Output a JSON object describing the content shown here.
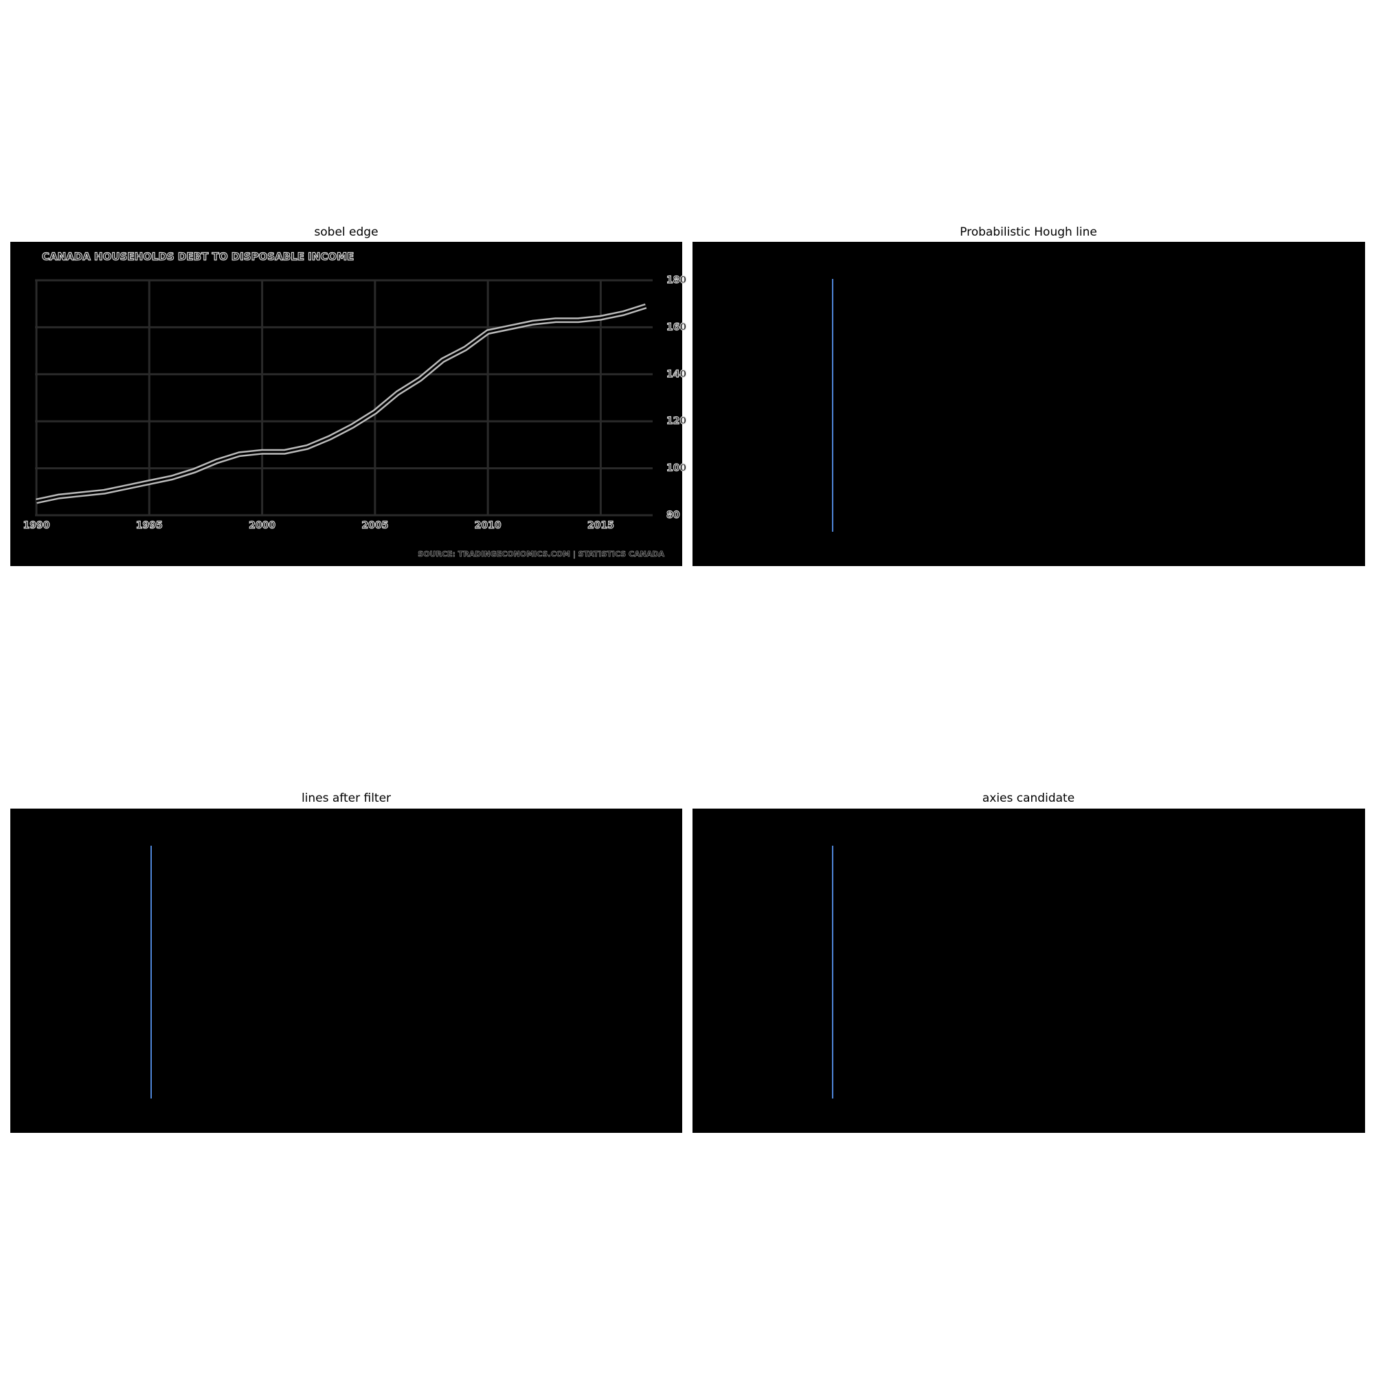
{
  "panels": [
    {
      "title": "sobel edge"
    },
    {
      "title": "Probabilistic Hough line"
    },
    {
      "title": "lines after filter"
    },
    {
      "title": "axies candidate"
    }
  ],
  "chart_data": {
    "type": "line",
    "title": "CANADA HOUSEHOLDS DEBT TO DISPOSABLE INCOME",
    "source": "SOURCE: TRADINGECONOMICS.COM | STATISTICS CANADA",
    "x": [
      1990,
      1991,
      1992,
      1993,
      1994,
      1995,
      1996,
      1997,
      1998,
      1999,
      2000,
      2001,
      2002,
      2003,
      2004,
      2005,
      2006,
      2007,
      2008,
      2009,
      2010,
      2011,
      2012,
      2013,
      2014,
      2015,
      2016,
      2017
    ],
    "values": [
      86,
      88,
      89,
      90,
      92,
      94,
      96,
      99,
      103,
      106,
      107,
      107,
      109,
      113,
      118,
      124,
      132,
      138,
      146,
      151,
      158,
      160,
      162,
      163,
      163,
      164,
      166,
      169
    ],
    "xlim": [
      1990,
      2017.3
    ],
    "ylim": [
      80,
      180
    ],
    "xticks": [
      1990,
      1995,
      2000,
      2005,
      2010,
      2015
    ],
    "yticks": [
      80,
      100,
      120,
      140,
      160,
      180
    ],
    "grid": true
  }
}
